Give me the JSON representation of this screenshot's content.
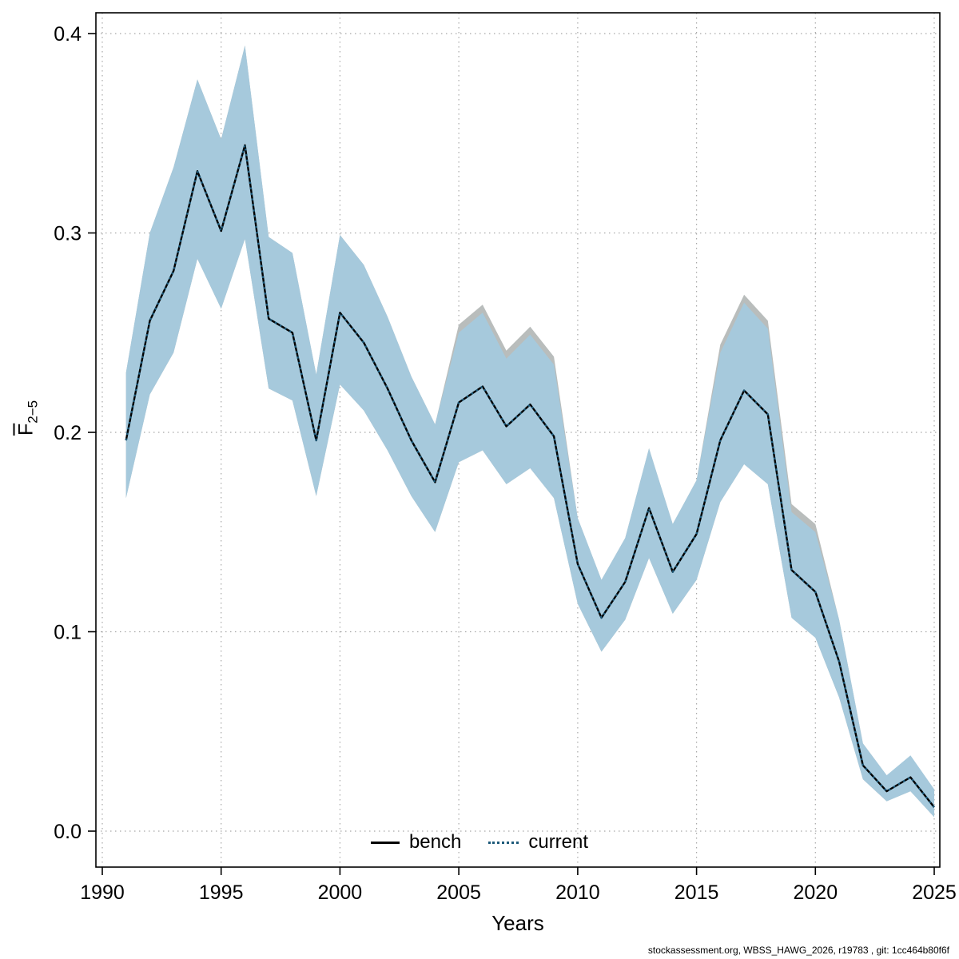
{
  "page": {
    "xlabel": "Years",
    "ylabel_main": "F",
    "ylabel_sub": "2−5",
    "footer": "stockassessment.org, WBSS_HAWG_2026, r19783 , git: 1cc464b80f6f"
  },
  "legend": {
    "items": [
      {
        "label": "bench",
        "style": "solid",
        "color": "#000000"
      },
      {
        "label": "current",
        "style": "dotted",
        "color": "#1d5a7a"
      }
    ]
  },
  "chart_data": {
    "type": "line",
    "title": "",
    "xlabel": "Years",
    "ylabel": "F̅_2-5",
    "xlim": [
      1990,
      2025
    ],
    "ylim": [
      0.0,
      0.4
    ],
    "grid": true,
    "grid_color": "#a8a8a8",
    "legend_position": "bottom-center",
    "x_ticks": [
      1990,
      1995,
      2000,
      2005,
      2010,
      2015,
      2020,
      2025
    ],
    "y_ticks": [
      "0.0",
      "0.1",
      "0.2",
      "0.3",
      "0.4"
    ],
    "years": [
      1991,
      1992,
      1993,
      1994,
      1995,
      1996,
      1997,
      1998,
      1999,
      2000,
      2001,
      2002,
      2003,
      2004,
      2005,
      2006,
      2007,
      2008,
      2009,
      2010,
      2011,
      2012,
      2013,
      2014,
      2015,
      2016,
      2017,
      2018,
      2019,
      2020,
      2021,
      2022,
      2023,
      2024,
      2025
    ],
    "series": [
      {
        "name": "bench",
        "color": "#000000",
        "line": "solid",
        "band_color": "#b9bdbc",
        "values": [
          0.196,
          0.256,
          0.281,
          0.331,
          0.301,
          0.344,
          0.257,
          0.25,
          0.196,
          0.26,
          0.245,
          0.222,
          0.196,
          0.175,
          0.215,
          0.223,
          0.203,
          0.214,
          0.198,
          0.134,
          0.107,
          0.125,
          0.162,
          0.13,
          0.149,
          0.196,
          0.221,
          0.209,
          0.131,
          0.12,
          0.085,
          0.033,
          0.02,
          0.027,
          0.012
        ],
        "lower": [
          0.167,
          0.219,
          0.24,
          0.287,
          0.262,
          0.297,
          0.222,
          0.216,
          0.168,
          0.224,
          0.211,
          0.191,
          0.168,
          0.15,
          0.185,
          0.191,
          0.174,
          0.182,
          0.167,
          0.114,
          0.09,
          0.106,
          0.137,
          0.109,
          0.126,
          0.165,
          0.184,
          0.174,
          0.107,
          0.097,
          0.067,
          0.026,
          0.015,
          0.02,
          0.007
        ],
        "upper": [
          0.23,
          0.3,
          0.333,
          0.377,
          0.347,
          0.394,
          0.298,
          0.29,
          0.229,
          0.299,
          0.284,
          0.258,
          0.228,
          0.204,
          0.254,
          0.264,
          0.241,
          0.253,
          0.238,
          0.157,
          0.126,
          0.147,
          0.192,
          0.154,
          0.176,
          0.244,
          0.269,
          0.256,
          0.164,
          0.154,
          0.106,
          0.044,
          0.028,
          0.033,
          0.016
        ]
      },
      {
        "name": "current",
        "color": "#1d5a7a",
        "line": "dotted",
        "band_color": "#a6c9dc",
        "values": [
          0.196,
          0.256,
          0.281,
          0.331,
          0.301,
          0.344,
          0.257,
          0.25,
          0.196,
          0.26,
          0.245,
          0.222,
          0.196,
          0.175,
          0.215,
          0.223,
          0.203,
          0.214,
          0.198,
          0.134,
          0.107,
          0.125,
          0.162,
          0.13,
          0.149,
          0.196,
          0.221,
          0.209,
          0.131,
          0.12,
          0.085,
          0.033,
          0.02,
          0.027,
          0.012
        ],
        "lower": [
          0.167,
          0.219,
          0.24,
          0.287,
          0.262,
          0.297,
          0.222,
          0.216,
          0.168,
          0.224,
          0.211,
          0.191,
          0.168,
          0.15,
          0.185,
          0.191,
          0.174,
          0.182,
          0.167,
          0.114,
          0.09,
          0.106,
          0.137,
          0.109,
          0.126,
          0.165,
          0.184,
          0.174,
          0.107,
          0.097,
          0.067,
          0.026,
          0.015,
          0.02,
          0.007
        ],
        "upper": [
          0.23,
          0.3,
          0.333,
          0.377,
          0.347,
          0.394,
          0.298,
          0.29,
          0.229,
          0.299,
          0.284,
          0.258,
          0.228,
          0.204,
          0.25,
          0.26,
          0.237,
          0.249,
          0.234,
          0.157,
          0.126,
          0.147,
          0.192,
          0.154,
          0.176,
          0.24,
          0.265,
          0.252,
          0.16,
          0.15,
          0.106,
          0.044,
          0.028,
          0.038,
          0.021
        ]
      }
    ],
    "footnote": "stockassessment.org, WBSS_HAWG_2026, r19783 , git: 1cc464b80f6f"
  }
}
